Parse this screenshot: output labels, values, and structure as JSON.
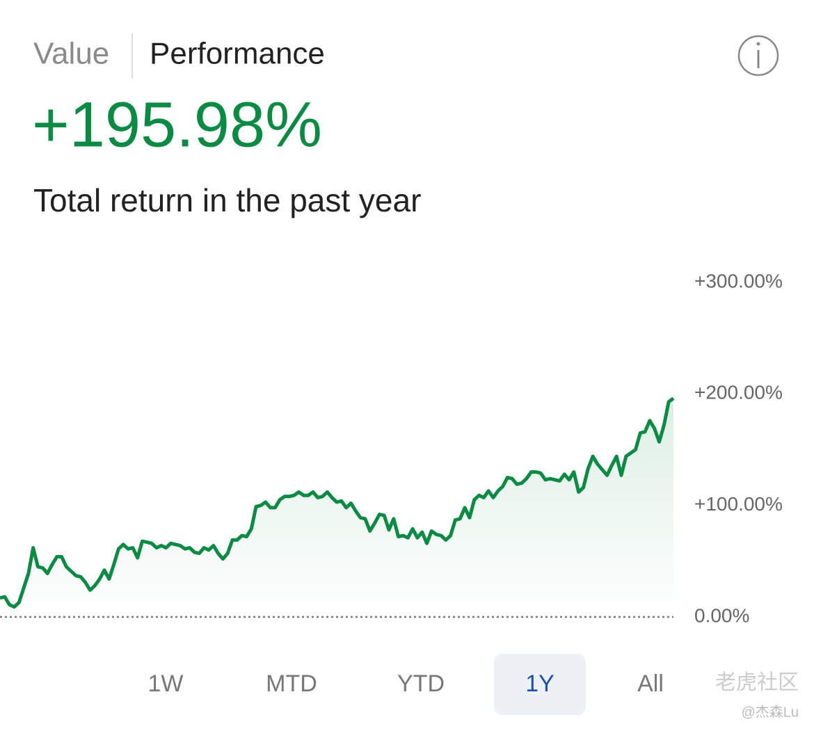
{
  "tabs": [
    "Value",
    "Performance"
  ],
  "headline": "+195.98%",
  "subtitle": "Total return in the past year",
  "periods": [
    "1W",
    "MTD",
    "YTD",
    "1Y",
    "All"
  ],
  "selected_period": 3,
  "watermark": [
    "老虎社区",
    "@杰森Lu"
  ],
  "chart_data": {
    "type": "line",
    "color": "#0a8a43",
    "values": [
      17,
      18,
      11,
      9,
      13,
      26,
      39,
      62,
      45,
      44,
      39,
      47,
      54,
      54,
      45,
      41,
      37,
      36,
      31,
      24,
      28,
      34,
      42,
      34,
      47,
      61,
      65,
      61,
      62,
      53,
      68,
      67,
      66,
      62,
      64,
      62,
      66,
      65,
      64,
      61,
      62,
      58,
      57,
      62,
      60,
      64,
      57,
      52,
      57,
      69,
      69,
      73,
      72,
      79,
      99,
      100,
      103,
      98,
      98,
      105,
      108,
      108,
      109,
      112,
      109,
      109,
      112,
      107,
      108,
      112,
      107,
      103,
      104,
      98,
      102,
      95,
      89,
      88,
      77,
      84,
      92,
      91,
      78,
      88,
      72,
      73,
      71,
      79,
      71,
      76,
      66,
      77,
      74,
      73,
      69,
      73,
      87,
      88,
      98,
      89,
      105,
      109,
      107,
      113,
      107,
      113,
      117,
      125,
      124,
      119,
      120,
      124,
      130,
      130,
      129,
      123,
      124,
      123,
      122,
      128,
      123,
      130,
      112,
      116,
      133,
      144,
      137,
      132,
      127,
      136,
      144,
      127,
      144,
      147,
      150,
      165,
      166,
      176,
      169,
      157,
      172,
      193,
      196
    ],
    "ylim": [
      0,
      300
    ],
    "yticks": [
      {
        "value": 0,
        "label": "0.00%"
      },
      {
        "value": 100,
        "label": "+100.00%"
      },
      {
        "value": 200,
        "label": "+200.00%"
      },
      {
        "value": 300,
        "label": "+300.00%"
      }
    ]
  }
}
